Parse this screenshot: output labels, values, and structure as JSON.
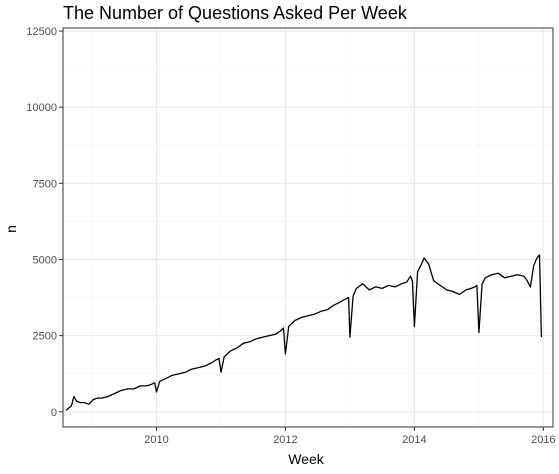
{
  "chart_data": {
    "type": "line",
    "title": "The Number of Questions Asked Per Week",
    "xlabel": "Week",
    "ylabel": "n",
    "xlim": [
      2008.55,
      2016.15
    ],
    "ylim": [
      -500,
      12600
    ],
    "x_ticks": [
      2010,
      2012,
      2014,
      2016
    ],
    "x_tick_labels": [
      "2010",
      "2012",
      "2014",
      "2016"
    ],
    "y_ticks": [
      0,
      2500,
      5000,
      7500,
      10000,
      12500
    ],
    "y_tick_labels": [
      "0",
      "2500",
      "5000",
      "7500",
      "10000",
      "12500"
    ],
    "grid": true,
    "legend": "none",
    "colors": {
      "line": "#000000",
      "panel_border": "#333333",
      "grid_major": "#ebebeb",
      "grid_minor": "#f5f5f5",
      "axis_text": "#4d4d4d",
      "title_text": "#000000"
    },
    "series": [
      {
        "x": [
          2008.6,
          2008.68,
          2008.72,
          2008.76,
          2008.82,
          2008.88,
          2008.95,
          2009.02,
          2009.08,
          2009.15,
          2009.25,
          2009.35,
          2009.45,
          2009.55,
          2009.65,
          2009.75,
          2009.85,
          2009.92,
          2009.97,
          2010.0,
          2010.05,
          2010.15,
          2010.25,
          2010.35,
          2010.45,
          2010.55,
          2010.65,
          2010.75,
          2010.85,
          2010.92,
          2010.97,
          2011.0,
          2011.05,
          2011.15,
          2011.25,
          2011.35,
          2011.45,
          2011.55,
          2011.65,
          2011.75,
          2011.85,
          2011.92,
          2011.97,
          2012.0,
          2012.05,
          2012.15,
          2012.25,
          2012.35,
          2012.45,
          2012.55,
          2012.65,
          2012.75,
          2012.85,
          2012.93,
          2012.98,
          2013.0,
          2013.05,
          2013.1,
          2013.2,
          2013.3,
          2013.4,
          2013.5,
          2013.6,
          2013.7,
          2013.8,
          2013.88,
          2013.94,
          2013.97,
          2014.0,
          2014.05,
          2014.1,
          2014.15,
          2014.22,
          2014.3,
          2014.4,
          2014.5,
          2014.6,
          2014.7,
          2014.8,
          2014.88,
          2014.94,
          2014.97,
          2015.0,
          2015.05,
          2015.1,
          2015.2,
          2015.3,
          2015.4,
          2015.5,
          2015.6,
          2015.7,
          2015.75,
          2015.8,
          2015.85,
          2015.9,
          2015.94,
          2015.97
        ],
        "values": [
          50,
          200,
          500,
          350,
          300,
          300,
          250,
          400,
          450,
          450,
          500,
          600,
          700,
          750,
          750,
          850,
          850,
          900,
          950,
          650,
          1000,
          1100,
          1200,
          1250,
          1300,
          1400,
          1450,
          1500,
          1600,
          1700,
          1750,
          1300,
          1800,
          2000,
          2100,
          2250,
          2300,
          2400,
          2450,
          2500,
          2550,
          2650,
          2750,
          1900,
          2800,
          3000,
          3100,
          3150,
          3200,
          3300,
          3350,
          3500,
          3600,
          3700,
          3750,
          2450,
          3800,
          4050,
          4200,
          4000,
          4100,
          4050,
          4150,
          4100,
          4200,
          4250,
          4450,
          4300,
          2800,
          4600,
          4800,
          5050,
          4850,
          4300,
          4150,
          4000,
          3950,
          3850,
          4000,
          4050,
          4100,
          4150,
          2600,
          4200,
          4400,
          4500,
          4550,
          4400,
          4450,
          4500,
          4450,
          4300,
          4100,
          4800,
          5050,
          5150,
          2450
        ]
      }
    ]
  }
}
